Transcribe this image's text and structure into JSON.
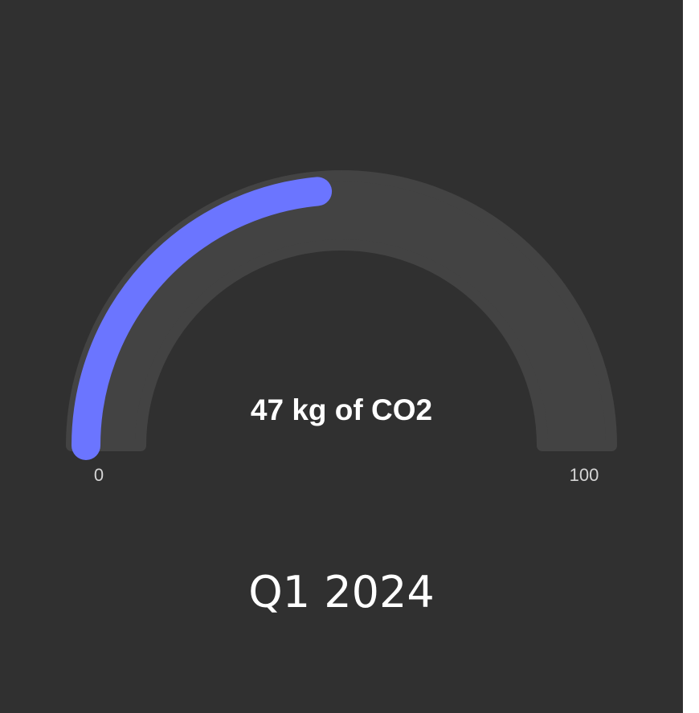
{
  "chart_data": {
    "type": "gauge",
    "value": 47,
    "unit_label": "kg of CO2",
    "display_text": "47 kg of CO2",
    "min": 0,
    "max": 100,
    "min_label": "0",
    "max_label": "100",
    "period": "Q1 2024",
    "colors": {
      "background": "#303030",
      "track": "#434343",
      "fill": "#6b75ff",
      "text": "#ffffff"
    }
  }
}
